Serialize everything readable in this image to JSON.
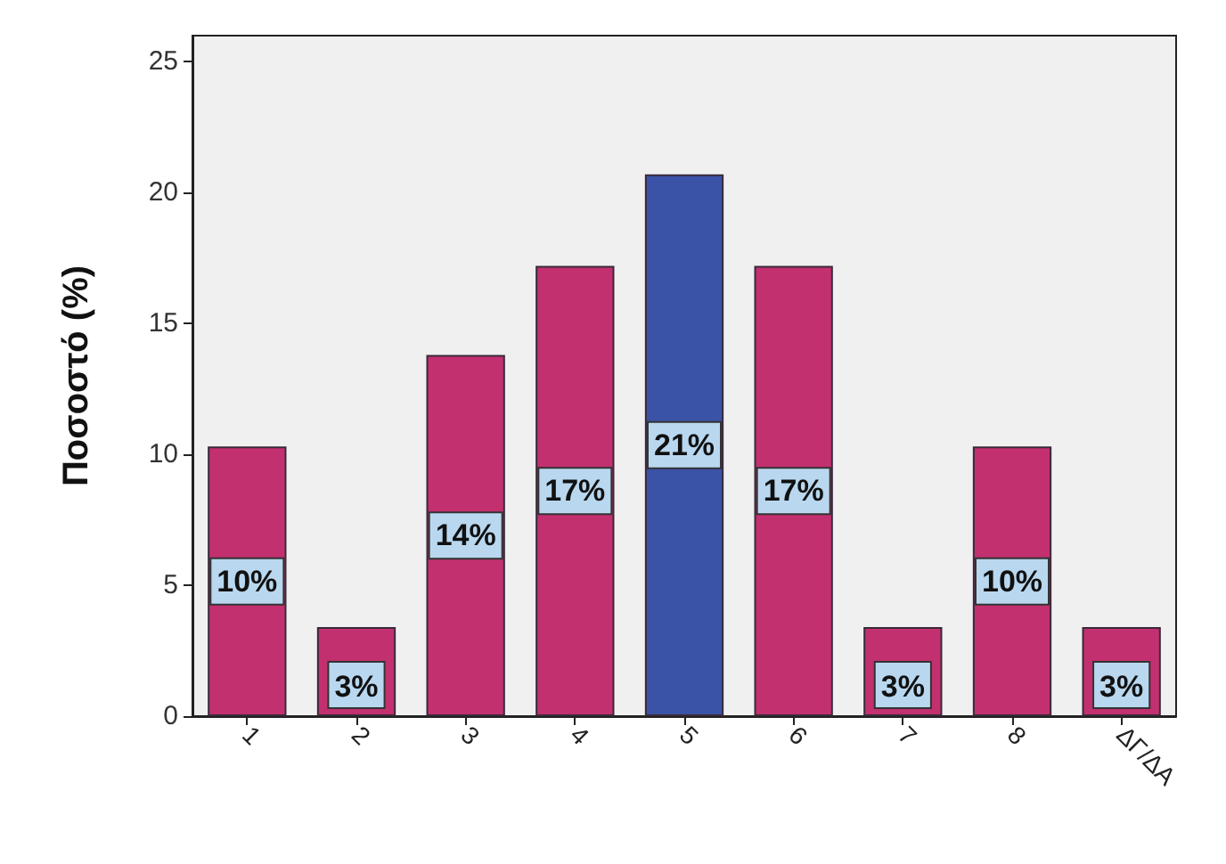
{
  "chart_data": {
    "type": "bar",
    "ylabel": "Ποσοστό (%)",
    "categories": [
      "1",
      "2",
      "3",
      "4",
      "5",
      "6",
      "7",
      "8",
      "ΔΓ/ΔΑ"
    ],
    "values": [
      10.3,
      3.4,
      13.8,
      17.2,
      20.7,
      17.2,
      3.4,
      10.3,
      3.4
    ],
    "value_labels": [
      "10%",
      "3%",
      "14%",
      "17%",
      "21%",
      "17%",
      "3%",
      "10%",
      "3%"
    ],
    "colors": [
      "#c2306f",
      "#c2306f",
      "#c2306f",
      "#c2306f",
      "#3a53a6",
      "#c2306f",
      "#c2306f",
      "#c2306f",
      "#c2306f"
    ],
    "ylim": [
      0,
      26
    ],
    "yticks": [
      0,
      5,
      10,
      15,
      20,
      25
    ],
    "grid": false
  }
}
